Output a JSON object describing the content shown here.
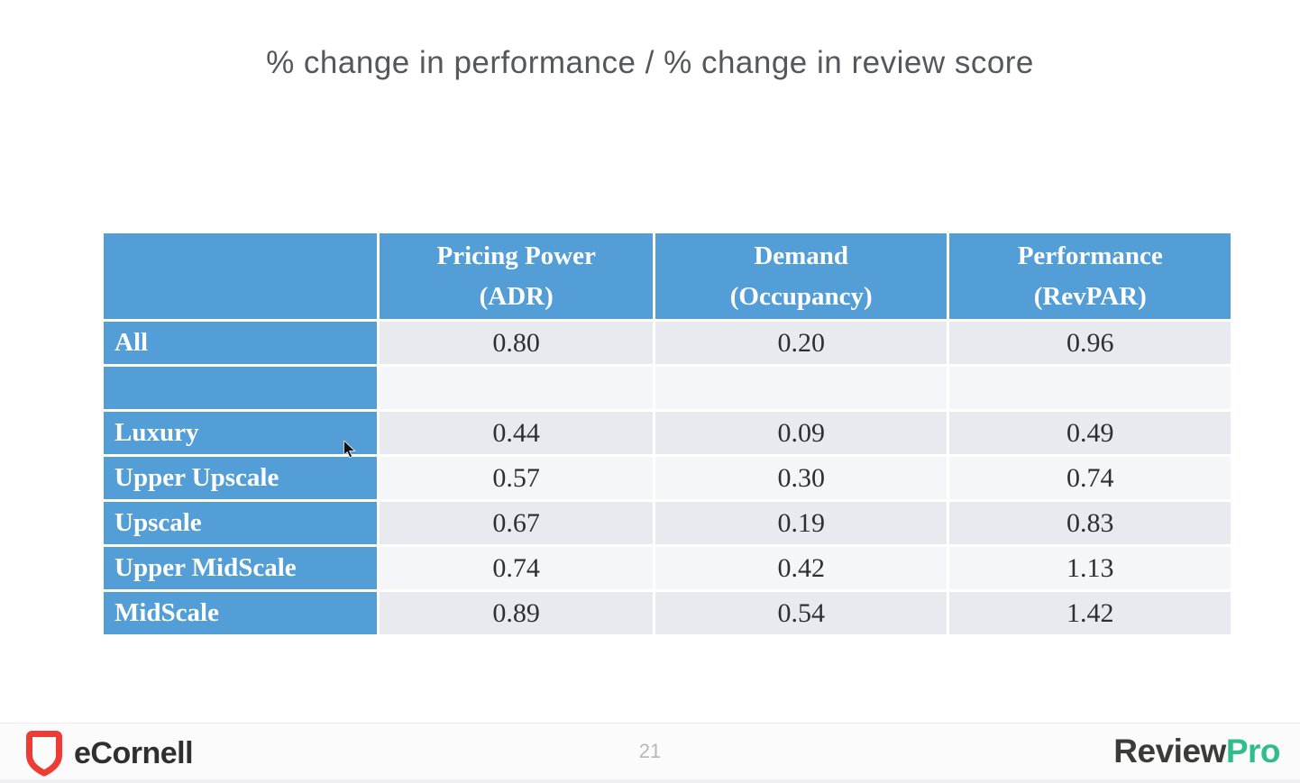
{
  "title": "% change in performance / % change in review score",
  "table": {
    "headers": [
      {
        "line1": "",
        "line2": ""
      },
      {
        "line1": "Pricing Power",
        "line2": "(ADR)"
      },
      {
        "line1": "Demand",
        "line2": "(Occupancy)"
      },
      {
        "line1": "Performance",
        "line2": "(RevPAR)"
      }
    ],
    "rows": [
      {
        "label": "All",
        "values": [
          "0.80",
          "0.20",
          "0.96"
        ],
        "shade": "gray"
      },
      {
        "label": "",
        "values": [
          "",
          "",
          ""
        ],
        "shade": "light"
      },
      {
        "label": "Luxury",
        "values": [
          "0.44",
          "0.09",
          "0.49"
        ],
        "shade": "gray"
      },
      {
        "label": "Upper Upscale",
        "values": [
          "0.57",
          "0.30",
          "0.74"
        ],
        "shade": "light"
      },
      {
        "label": "Upscale",
        "values": [
          "0.67",
          "0.19",
          "0.83"
        ],
        "shade": "gray"
      },
      {
        "label": "Upper MidScale",
        "values": [
          "0.74",
          "0.42",
          "1.13"
        ],
        "shade": "light"
      },
      {
        "label": "MidScale",
        "values": [
          "0.89",
          "0.54",
          "1.42"
        ],
        "shade": "gray"
      }
    ]
  },
  "footer": {
    "left_brand": "eCornell",
    "page_number": "21",
    "right_brand_dark": "Review",
    "right_brand_green": "Pro"
  },
  "colors": {
    "table_header_blue": "#549ed7",
    "row_gray": "#e9eaef",
    "row_light": "#f5f6fa",
    "title_gray": "#56575b",
    "ecornell_red": "#ee3b33",
    "reviewpro_green": "#2ebd8c"
  }
}
